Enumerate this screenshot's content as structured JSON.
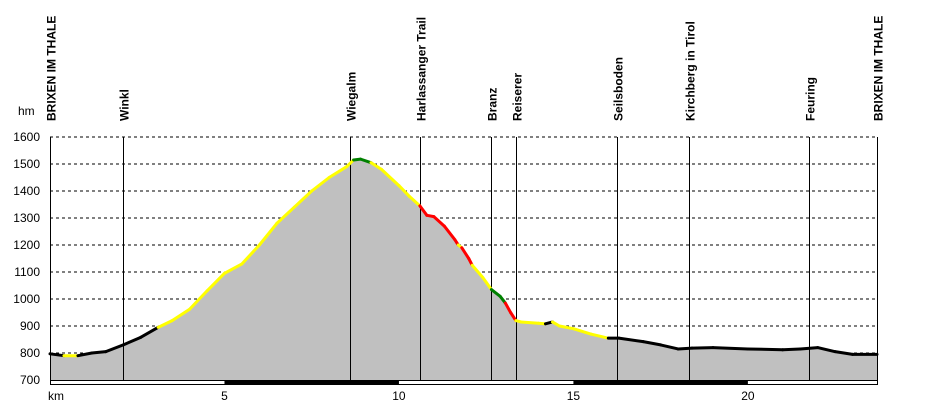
{
  "chart_data": {
    "type": "area",
    "title": "",
    "ylabel": "hm",
    "xlabel": "km",
    "xlim": [
      0,
      23.7
    ],
    "ylim": [
      700,
      1600
    ],
    "yticks": [
      700,
      800,
      900,
      1000,
      1100,
      1200,
      1300,
      1400,
      1500,
      1600
    ],
    "xticks": [
      5,
      10,
      15,
      20
    ],
    "grid": true,
    "fill_color": "#c0c0c0",
    "segment_colors": {
      "k": "#000000",
      "y": "#ffff00",
      "r": "#ff0000",
      "g": "#008000"
    },
    "waypoints": [
      {
        "name": "BRIXEN IM THALE",
        "km": 0
      },
      {
        "name": "Winkl",
        "km": 2.1
      },
      {
        "name": "Wiegalm",
        "km": 8.6
      },
      {
        "name": "Harlassanger Trail",
        "km": 10.6
      },
      {
        "name": "Branz",
        "km": 12.65
      },
      {
        "name": "Reiserer",
        "km": 13.35
      },
      {
        "name": "Seilsboden",
        "km": 16.25
      },
      {
        "name": "Kirchberg in Tirol",
        "km": 18.3
      },
      {
        "name": "Feuring",
        "km": 21.75
      },
      {
        "name": "BRIXEN IM THALE",
        "km": 23.7
      }
    ],
    "profile": [
      [
        0,
        797,
        "k"
      ],
      [
        0.4,
        790,
        "k"
      ],
      [
        0.8,
        790,
        "y"
      ],
      [
        1.2,
        800,
        "k"
      ],
      [
        1.6,
        805,
        "k"
      ],
      [
        2.1,
        830,
        "k"
      ],
      [
        2.6,
        858,
        "k"
      ],
      [
        3.1,
        895,
        "k"
      ],
      [
        3.5,
        920,
        "y"
      ],
      [
        4,
        962,
        "y"
      ],
      [
        4.5,
        1030,
        "y"
      ],
      [
        5,
        1095,
        "y"
      ],
      [
        5.5,
        1130,
        "y"
      ],
      [
        6,
        1200,
        "y"
      ],
      [
        6.5,
        1280,
        "y"
      ],
      [
        7,
        1340,
        "y"
      ],
      [
        7.5,
        1400,
        "y"
      ],
      [
        8,
        1450,
        "y"
      ],
      [
        8.5,
        1490,
        "y"
      ],
      [
        8.7,
        1515,
        "y"
      ],
      [
        8.9,
        1518,
        "g"
      ],
      [
        9.2,
        1505,
        "g"
      ],
      [
        9.5,
        1480,
        "y"
      ],
      [
        10,
        1420,
        "y"
      ],
      [
        10.3,
        1380,
        "y"
      ],
      [
        10.6,
        1345,
        "y"
      ],
      [
        10.8,
        1310,
        "r"
      ],
      [
        11,
        1305,
        "r"
      ],
      [
        11.3,
        1270,
        "r"
      ],
      [
        11.6,
        1220,
        "r"
      ],
      [
        11.7,
        1200,
        "r"
      ],
      [
        11.8,
        1190,
        "y"
      ],
      [
        12,
        1150,
        "r"
      ],
      [
        12.1,
        1125,
        "r"
      ],
      [
        12.4,
        1080,
        "y"
      ],
      [
        12.65,
        1035,
        "y"
      ],
      [
        12.9,
        1010,
        "g"
      ],
      [
        13.05,
        985,
        "g"
      ],
      [
        13.2,
        950,
        "r"
      ],
      [
        13.35,
        920,
        "r"
      ],
      [
        13.5,
        915,
        "y"
      ],
      [
        14,
        910,
        "y"
      ],
      [
        14.2,
        908,
        "y"
      ],
      [
        14.4,
        915,
        "k"
      ],
      [
        14.6,
        900,
        "y"
      ],
      [
        15,
        890,
        "y"
      ],
      [
        15.5,
        870,
        "y"
      ],
      [
        16,
        855,
        "y"
      ],
      [
        16.3,
        855,
        "k"
      ],
      [
        17,
        842,
        "k"
      ],
      [
        17.5,
        830,
        "k"
      ],
      [
        18,
        815,
        "k"
      ],
      [
        18.4,
        818,
        "k"
      ],
      [
        19,
        820,
        "k"
      ],
      [
        20,
        815,
        "k"
      ],
      [
        21,
        812,
        "k"
      ],
      [
        21.5,
        815,
        "k"
      ],
      [
        22,
        820,
        "k"
      ],
      [
        22.5,
        805,
        "k"
      ],
      [
        23,
        795,
        "k"
      ],
      [
        23.7,
        795,
        "k"
      ]
    ]
  }
}
